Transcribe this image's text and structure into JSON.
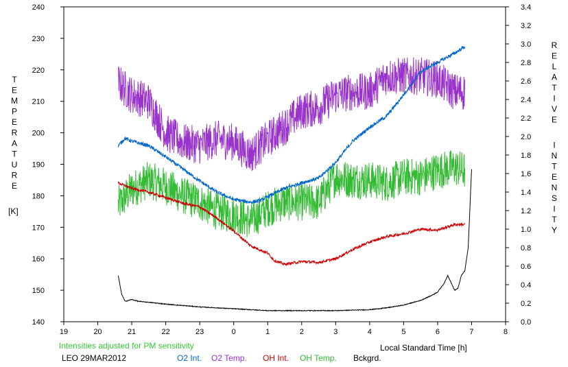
{
  "chart_data": {
    "type": "line",
    "left_axis_label": "TEMPERATURE",
    "left_axis_unit": "[K]",
    "right_axis_label": "RELATIVE INTENSITY",
    "x_axis_label": "Local Standard Time [h]",
    "note": "Intensities adjusted for PM sensitivity",
    "site_date": "LEO 29MAR2012",
    "x_ticks": [
      "19",
      "20",
      "21",
      "22",
      "23",
      "0",
      "1",
      "2",
      "3",
      "4",
      "5",
      "6",
      "7",
      "8"
    ],
    "x_range": [
      19,
      32
    ],
    "y_left_range": [
      140,
      240
    ],
    "y_left_ticks": [
      "140",
      "150",
      "160",
      "170",
      "180",
      "190",
      "200",
      "210",
      "220",
      "230",
      "240"
    ],
    "y_right_range": [
      0.0,
      3.4
    ],
    "y_right_ticks": [
      "0.0",
      "0.2",
      "0.4",
      "0.6",
      "0.8",
      "1.0",
      "1.2",
      "1.4",
      "1.6",
      "1.8",
      "2.0",
      "2.2",
      "2.4",
      "2.6",
      "2.8",
      "3.0",
      "3.2",
      "3.4"
    ],
    "series": [
      {
        "name": "O2 Int.",
        "color": "#0066cc",
        "axis": "right",
        "noise": 0.02,
        "x": [
          20.6,
          20.8,
          21.0,
          21.5,
          22.0,
          22.5,
          23.0,
          23.5,
          24.0,
          24.5,
          24.8,
          25.0,
          25.5,
          26.0,
          26.5,
          27.0,
          27.5,
          28.0,
          28.5,
          29.0,
          29.5,
          30.0,
          30.5,
          30.8
        ],
        "y": [
          1.9,
          1.98,
          1.95,
          1.9,
          1.78,
          1.65,
          1.52,
          1.4,
          1.32,
          1.29,
          1.31,
          1.35,
          1.44,
          1.5,
          1.55,
          1.72,
          1.95,
          2.1,
          2.22,
          2.45,
          2.7,
          2.8,
          2.9,
          2.97
        ]
      },
      {
        "name": "O2 Temp.",
        "color": "#9933cc",
        "axis": "left",
        "noise": 6,
        "x": [
          20.6,
          21.0,
          21.5,
          22.0,
          22.5,
          23.0,
          23.5,
          24.0,
          24.5,
          25.0,
          25.5,
          26.0,
          26.5,
          27.0,
          27.5,
          28.0,
          28.5,
          29.0,
          29.5,
          30.0,
          30.5,
          30.8
        ],
        "y": [
          216,
          212,
          210,
          200,
          197,
          196,
          198,
          197,
          193,
          198,
          202,
          207,
          208,
          212,
          213,
          213,
          218,
          218,
          218,
          217,
          213,
          213
        ]
      },
      {
        "name": "OH Int.",
        "color": "#cc0000",
        "axis": "right",
        "noise": 0.015,
        "x": [
          20.6,
          21.0,
          21.5,
          22.0,
          22.5,
          23.0,
          23.5,
          24.0,
          24.5,
          25.0,
          25.2,
          25.5,
          26.0,
          26.5,
          27.0,
          27.5,
          28.0,
          28.5,
          29.0,
          29.5,
          30.0,
          30.5,
          30.8
        ],
        "y": [
          1.5,
          1.44,
          1.4,
          1.34,
          1.28,
          1.24,
          1.12,
          0.98,
          0.82,
          0.74,
          0.66,
          0.62,
          0.65,
          0.64,
          0.68,
          0.78,
          0.86,
          0.92,
          0.95,
          1.0,
          0.99,
          1.05,
          1.05
        ]
      },
      {
        "name": "OH Temp.",
        "color": "#33bb33",
        "axis": "left",
        "noise": 6,
        "x": [
          20.6,
          21.0,
          21.5,
          22.0,
          22.5,
          23.0,
          23.5,
          24.0,
          24.5,
          25.0,
          25.5,
          26.0,
          26.5,
          27.0,
          27.5,
          28.0,
          28.5,
          29.0,
          29.5,
          30.0,
          30.5,
          30.8
        ],
        "y": [
          177,
          182,
          185,
          183,
          180,
          178,
          175,
          174,
          172,
          176,
          178,
          178,
          178,
          186,
          185,
          185,
          184,
          186,
          186,
          188,
          189,
          188
        ]
      },
      {
        "name": "Bckgrd.",
        "color": "#000000",
        "axis": "right",
        "noise": 0.004,
        "x": [
          20.6,
          20.7,
          20.8,
          21.0,
          21.2,
          21.5,
          22.0,
          23.0,
          24.0,
          25.0,
          26.0,
          27.0,
          28.0,
          28.5,
          29.0,
          29.5,
          29.8,
          30.0,
          30.2,
          30.3,
          30.4,
          30.5,
          30.6,
          30.7,
          30.8,
          30.9,
          31.0
        ],
        "y": [
          0.5,
          0.3,
          0.22,
          0.24,
          0.22,
          0.21,
          0.19,
          0.16,
          0.14,
          0.12,
          0.12,
          0.12,
          0.13,
          0.15,
          0.18,
          0.23,
          0.28,
          0.32,
          0.42,
          0.5,
          0.42,
          0.34,
          0.36,
          0.5,
          0.55,
          0.8,
          1.65
        ]
      }
    ]
  }
}
